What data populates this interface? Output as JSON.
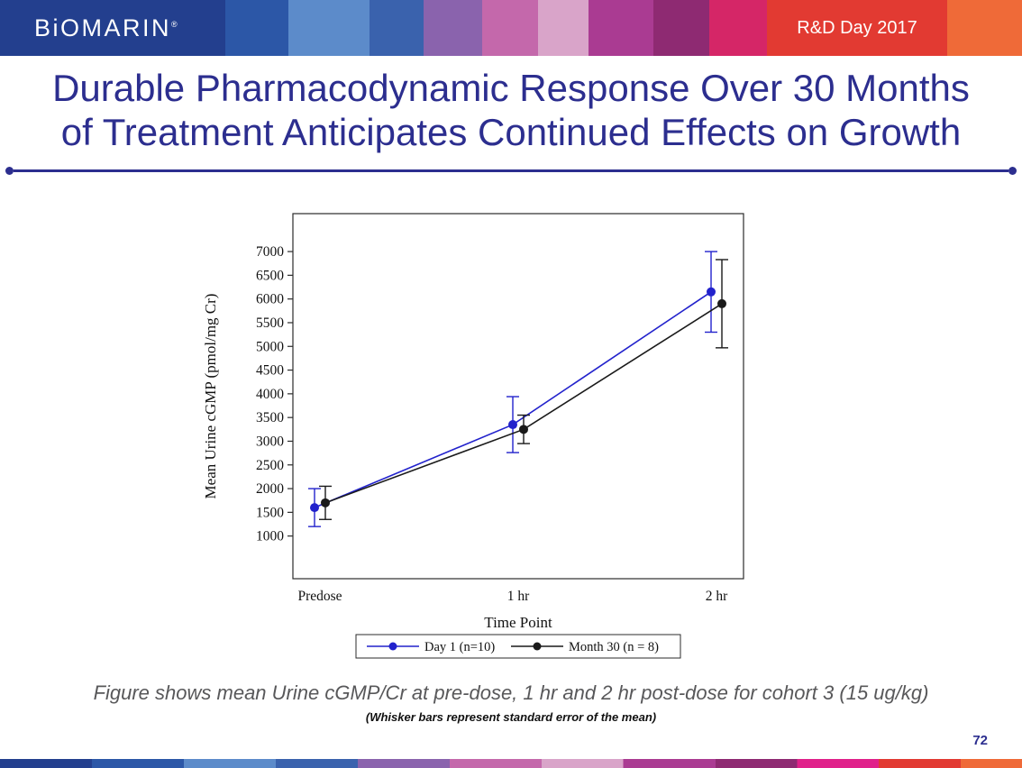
{
  "header": {
    "brand": "BiOMARIN",
    "brand_mark": "®",
    "event_label": "R&D Day 2017"
  },
  "slide": {
    "title_line1": "Durable Pharmacodynamic Response Over 30 Months",
    "title_line2": "of Treatment Anticipates Continued Effects on Growth",
    "caption": "Figure shows mean Urine cGMP/Cr at pre-dose, 1 hr and 2 hr post-dose for cohort 3 (15 ug/kg)",
    "subcaption": "(Whisker bars represent standard error of the mean)",
    "page_number": "72"
  },
  "chart_data": {
    "type": "line",
    "title": "",
    "categories": [
      "Predose",
      "1 hr",
      "2 hr"
    ],
    "xlabel": "Time Point",
    "ylabel": "Mean Urine cGMP (pmol/mg Cr)",
    "ylim": [
      100,
      7800
    ],
    "yticks": [
      1000,
      1500,
      2000,
      2500,
      3000,
      3500,
      4000,
      4500,
      5000,
      5500,
      6000,
      6500,
      7000
    ],
    "grid": false,
    "legend_position": "bottom",
    "error_bars": "standard error of the mean",
    "series": [
      {
        "name": "Day 1 (n=10)",
        "color": "#2222cc",
        "values": [
          1600,
          3350,
          6150
        ],
        "se": [
          400,
          590,
          850
        ]
      },
      {
        "name": "Month 30 (n = 8)",
        "color": "#1a1a1a",
        "values": [
          1700,
          3250,
          5900
        ],
        "se": [
          350,
          300,
          930
        ]
      }
    ]
  }
}
